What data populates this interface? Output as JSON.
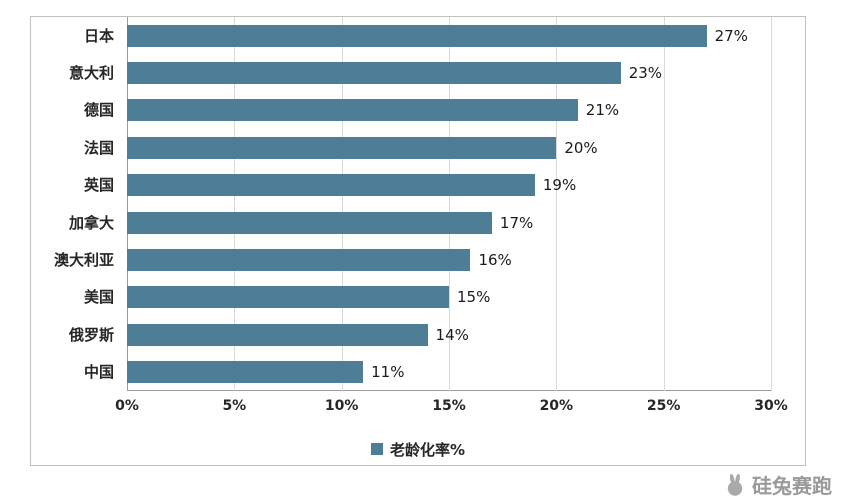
{
  "chart_data": {
    "type": "bar",
    "orientation": "horizontal",
    "title": "",
    "categories": [
      "日本",
      "意大利",
      "德国",
      "法国",
      "英国",
      "加拿大",
      "澳大利亚",
      "美国",
      "俄罗斯",
      "中国"
    ],
    "values": [
      27,
      23,
      21,
      20,
      19,
      17,
      16,
      15,
      14,
      11
    ],
    "value_labels": [
      "27%",
      "23%",
      "21%",
      "20%",
      "19%",
      "17%",
      "16%",
      "15%",
      "14%",
      "11%"
    ],
    "x_ticks": [
      "0%",
      "5%",
      "10%",
      "15%",
      "20%",
      "25%",
      "30%"
    ],
    "xlim": [
      0,
      30
    ],
    "grid": true,
    "legend": {
      "label": "老龄化率%",
      "position": "bottom"
    },
    "bar_color": "#4E7E96"
  },
  "watermark": {
    "text": "硅兔赛跑"
  },
  "colors": {
    "bar": "#4E7E96",
    "gridline": "#d9d9d9",
    "axis": "#9b9b9b",
    "text": "#262626",
    "watermark": "#9a9a9a"
  }
}
